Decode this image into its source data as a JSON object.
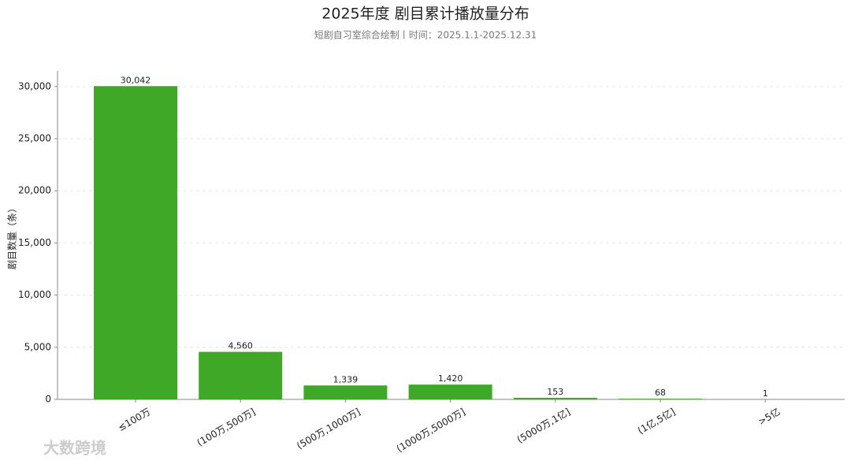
{
  "chart_data": {
    "type": "bar",
    "title": "2025年度 剧目累计播放量分布",
    "subtitle": "短剧自习室综合绘制丨时间：2025.1.1-2025.12.31",
    "y_label": "剧目数量（条）",
    "categories": [
      "≤100万",
      "(100万,500万]",
      "(500万,1000万]",
      "(1000万,5000万]",
      "(5000万,1亿]",
      "(1亿,5亿]",
      ">5亿"
    ],
    "values": [
      30042,
      4560,
      1339,
      1420,
      153,
      68,
      1
    ],
    "value_labels": [
      "30,042",
      "4,560",
      "1,339",
      "1,420",
      "153",
      "68",
      "1"
    ],
    "color": "#3fa827",
    "ylim": [
      0,
      31500
    ],
    "yticks": [
      0,
      {
        "value": 5000,
        "label": "5,000"
      },
      {
        "value": 10000,
        "label": "10,000"
      },
      {
        "value": 15000,
        "label": "15,000"
      },
      {
        "value": 20000,
        "label": "20,000"
      },
      {
        "value": 25000,
        "label": "25,000"
      },
      {
        "value": 30000,
        "label": "30,000"
      }
    ],
    "grid": true,
    "watermark": "大数跨境"
  }
}
